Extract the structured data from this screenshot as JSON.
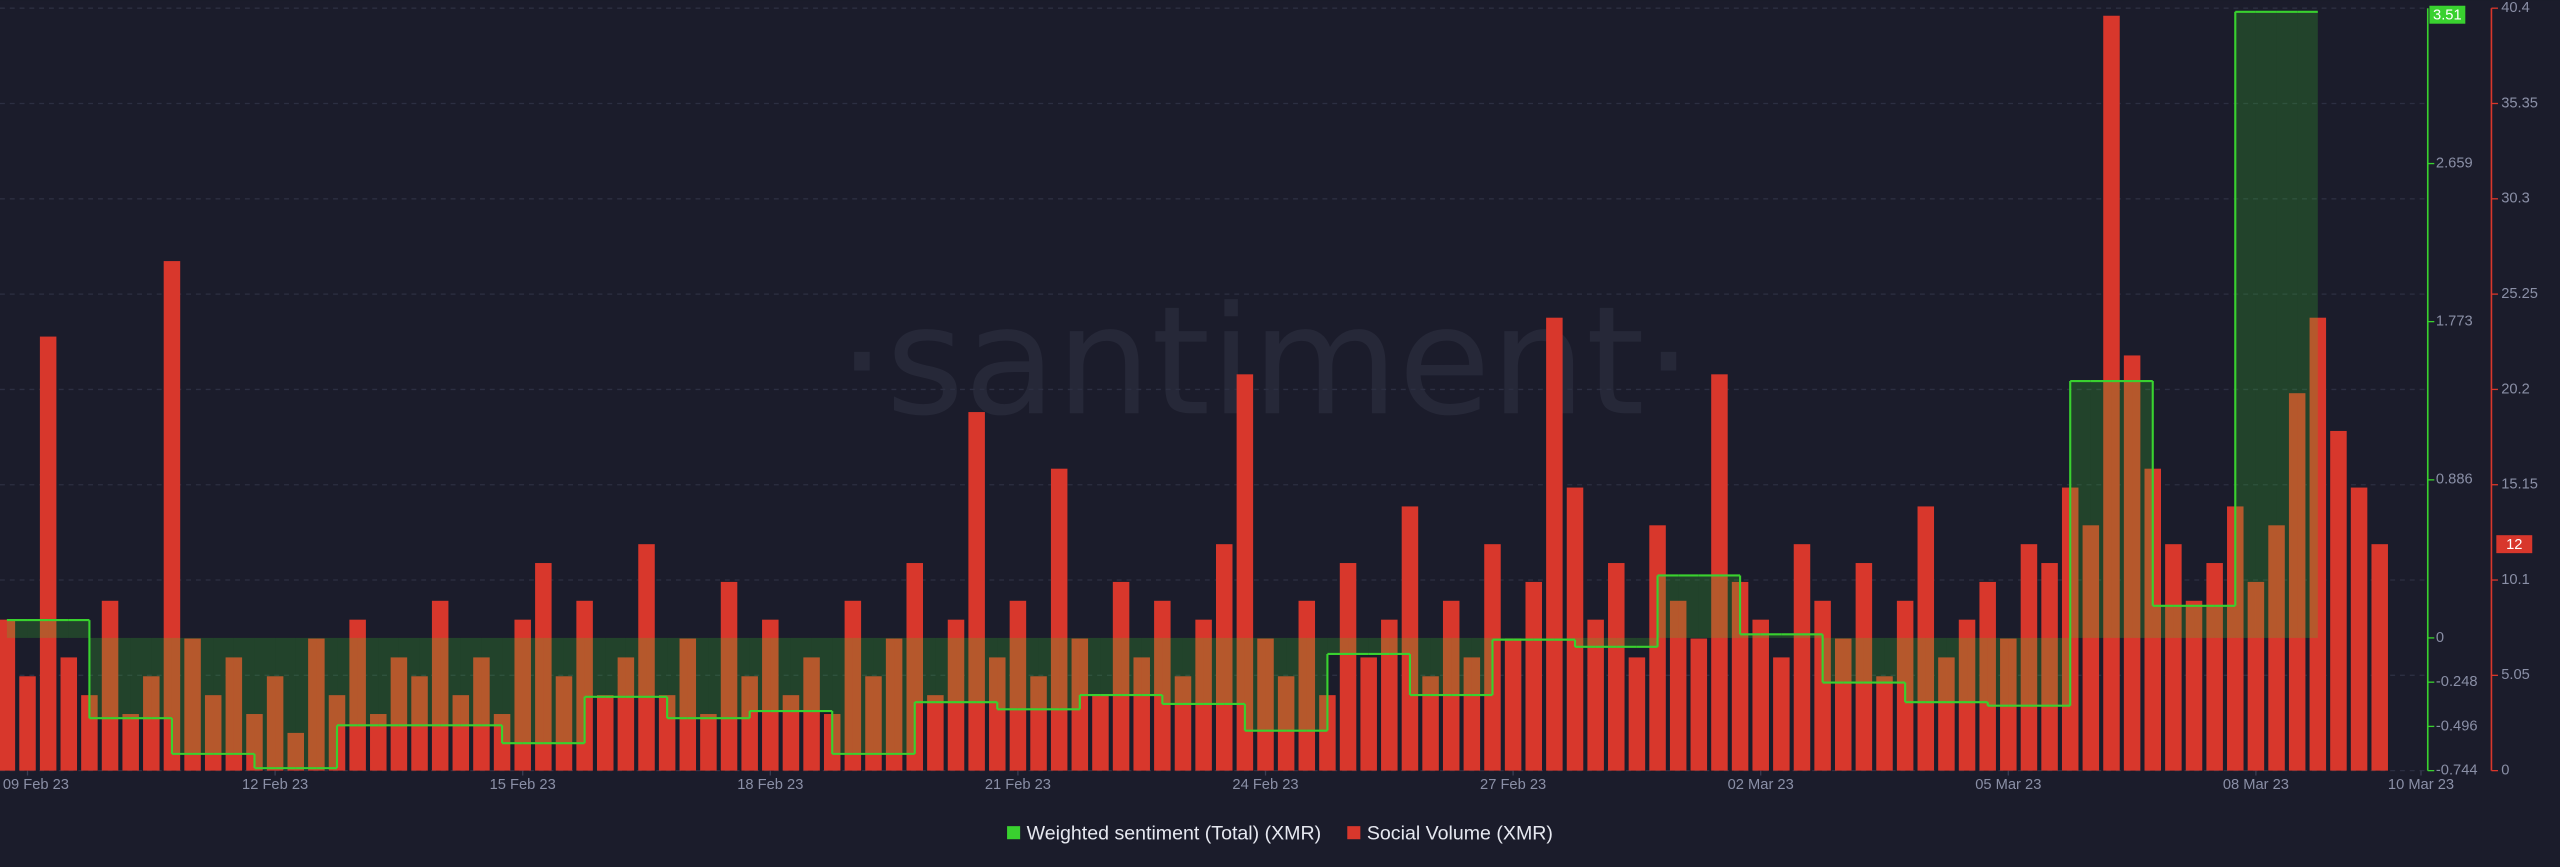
{
  "chart_data": {
    "type": "bar-step",
    "watermark": "·santiment·",
    "x": [
      "2023-02-08 18:00",
      "2023-02-09 00:00",
      "2023-02-09 06:00",
      "2023-02-09 12:00",
      "2023-02-09 18:00",
      "2023-02-10 00:00",
      "2023-02-10 06:00",
      "2023-02-10 12:00",
      "2023-02-10 18:00",
      "2023-02-11 00:00",
      "2023-02-11 06:00",
      "2023-02-11 12:00",
      "2023-02-11 18:00",
      "2023-02-12 00:00",
      "2023-02-12 06:00",
      "2023-02-12 12:00",
      "2023-02-12 18:00",
      "2023-02-13 00:00",
      "2023-02-13 06:00",
      "2023-02-13 12:00",
      "2023-02-13 18:00",
      "2023-02-14 00:00",
      "2023-02-14 06:00",
      "2023-02-14 12:00",
      "2023-02-14 18:00",
      "2023-02-15 00:00",
      "2023-02-15 06:00",
      "2023-02-15 12:00",
      "2023-02-15 18:00",
      "2023-02-16 00:00",
      "2023-02-16 06:00",
      "2023-02-16 12:00",
      "2023-02-16 18:00",
      "2023-02-17 00:00",
      "2023-02-17 06:00",
      "2023-02-17 12:00",
      "2023-02-17 18:00",
      "2023-02-18 00:00",
      "2023-02-18 06:00",
      "2023-02-18 12:00",
      "2023-02-18 18:00",
      "2023-02-19 00:00",
      "2023-02-19 06:00",
      "2023-02-19 12:00",
      "2023-02-19 18:00",
      "2023-02-20 00:00",
      "2023-02-20 06:00",
      "2023-02-20 12:00",
      "2023-02-20 18:00",
      "2023-02-21 00:00",
      "2023-02-21 06:00",
      "2023-02-21 12:00",
      "2023-02-21 18:00",
      "2023-02-22 00:00",
      "2023-02-22 06:00",
      "2023-02-22 12:00",
      "2023-02-22 18:00",
      "2023-02-23 00:00",
      "2023-02-23 06:00",
      "2023-02-23 12:00",
      "2023-02-23 18:00",
      "2023-02-24 00:00",
      "2023-02-24 06:00",
      "2023-02-24 12:00",
      "2023-02-24 18:00",
      "2023-02-25 00:00",
      "2023-02-25 06:00",
      "2023-02-25 12:00",
      "2023-02-25 18:00",
      "2023-02-26 00:00",
      "2023-02-26 06:00",
      "2023-02-26 12:00",
      "2023-02-26 18:00",
      "2023-02-27 00:00",
      "2023-02-27 06:00",
      "2023-02-27 12:00",
      "2023-02-27 18:00",
      "2023-02-28 00:00",
      "2023-02-28 06:00",
      "2023-02-28 12:00",
      "2023-02-28 18:00",
      "2023-03-01 00:00",
      "2023-03-01 06:00",
      "2023-03-01 12:00",
      "2023-03-01 18:00",
      "2023-03-02 00:00",
      "2023-03-02 06:00",
      "2023-03-02 12:00",
      "2023-03-02 18:00",
      "2023-03-03 00:00",
      "2023-03-03 06:00",
      "2023-03-03 12:00",
      "2023-03-03 18:00",
      "2023-03-04 00:00",
      "2023-03-04 06:00",
      "2023-03-04 12:00",
      "2023-03-04 18:00",
      "2023-03-05 00:00",
      "2023-03-05 06:00",
      "2023-03-05 12:00",
      "2023-03-05 18:00",
      "2023-03-06 00:00",
      "2023-03-06 06:00",
      "2023-03-06 12:00",
      "2023-03-06 18:00",
      "2023-03-07 00:00",
      "2023-03-07 06:00",
      "2023-03-07 12:00",
      "2023-03-07 18:00",
      "2023-03-08 00:00",
      "2023-03-08 06:00",
      "2023-03-08 12:00",
      "2023-03-08 18:00",
      "2023-03-09 00:00",
      "2023-03-09 06:00",
      "2023-03-09 12:00"
    ],
    "xlim": [
      "2023-02-08 16:00",
      "2023-03-09 16:00"
    ],
    "xticks": [
      {
        "value": "2023-02-09",
        "label": "09 Feb 23"
      },
      {
        "value": "2023-02-12",
        "label": "12 Feb 23"
      },
      {
        "value": "2023-02-15",
        "label": "15 Feb 23"
      },
      {
        "value": "2023-02-18",
        "label": "18 Feb 23"
      },
      {
        "value": "2023-02-21",
        "label": "21 Feb 23"
      },
      {
        "value": "2023-02-24",
        "label": "24 Feb 23"
      },
      {
        "value": "2023-02-27",
        "label": "27 Feb 23"
      },
      {
        "value": "2023-03-02",
        "label": "02 Mar 23"
      },
      {
        "value": "2023-03-05",
        "label": "05 Mar 23"
      },
      {
        "value": "2023-03-08",
        "label": "08 Mar 23"
      },
      {
        "value": "2023-03-10",
        "label": "10 Mar 23"
      }
    ],
    "ylim": [
      -0.744,
      3.53
    ],
    "yticks": [
      -0.744,
      -0.496,
      -0.248,
      0,
      0.886,
      1.773,
      2.659
    ],
    "y2lim": [
      0,
      40.4
    ],
    "y2ticks": [
      0,
      5.05,
      10.1,
      15.15,
      20.2,
      25.25,
      30.3,
      35.35,
      40.4
    ],
    "grid": true,
    "legend": "bottom",
    "series": [
      {
        "name": "Weighted sentiment (Total) (XMR)",
        "color": "#39d12f",
        "style": "step",
        "values": [
          0.1,
          0.1,
          0.1,
          0.1,
          -0.45,
          -0.45,
          -0.45,
          -0.45,
          -0.65,
          -0.65,
          -0.65,
          -0.65,
          -0.73,
          -0.73,
          -0.73,
          -0.73,
          -0.49,
          -0.49,
          -0.49,
          -0.49,
          -0.49,
          -0.49,
          -0.49,
          -0.49,
          -0.59,
          -0.59,
          -0.59,
          -0.59,
          -0.33,
          -0.33,
          -0.33,
          -0.33,
          -0.45,
          -0.45,
          -0.45,
          -0.45,
          -0.41,
          -0.41,
          -0.41,
          -0.41,
          -0.65,
          -0.65,
          -0.65,
          -0.65,
          -0.36,
          -0.36,
          -0.36,
          -0.36,
          -0.4,
          -0.4,
          -0.4,
          -0.4,
          -0.32,
          -0.32,
          -0.32,
          -0.32,
          -0.37,
          -0.37,
          -0.37,
          -0.37,
          -0.52,
          -0.52,
          -0.52,
          -0.52,
          -0.09,
          -0.09,
          -0.09,
          -0.09,
          -0.32,
          -0.32,
          -0.32,
          -0.32,
          -0.01,
          -0.01,
          -0.01,
          -0.01,
          -0.05,
          -0.05,
          -0.05,
          -0.05,
          0.35,
          0.35,
          0.35,
          0.35,
          0.02,
          0.02,
          0.02,
          0.02,
          -0.25,
          -0.25,
          -0.25,
          -0.25,
          -0.36,
          -0.36,
          -0.36,
          -0.36,
          -0.38,
          -0.38,
          -0.38,
          -0.38,
          1.44,
          1.44,
          1.44,
          1.44,
          0.18,
          0.18,
          0.18,
          0.18,
          3.51,
          3.51,
          3.51,
          3.51,
          null,
          null,
          null,
          null
        ]
      },
      {
        "name": "Social Volume (XMR)",
        "color": "#d8372c",
        "style": "bar",
        "axis": "y2",
        "values": [
          8,
          5,
          23,
          6,
          4,
          9,
          3,
          5,
          27,
          7,
          4,
          6,
          3,
          5,
          2,
          7,
          4,
          8,
          3,
          6,
          5,
          9,
          4,
          6,
          3,
          8,
          11,
          5,
          9,
          4,
          6,
          12,
          4,
          7,
          3,
          10,
          5,
          8,
          4,
          6,
          3,
          9,
          5,
          7,
          11,
          4,
          8,
          19,
          6,
          9,
          5,
          16,
          7,
          4,
          10,
          6,
          9,
          5,
          8,
          12,
          21,
          7,
          5,
          9,
          4,
          11,
          6,
          8,
          14,
          5,
          9,
          6,
          12,
          7,
          10,
          24,
          15,
          8,
          11,
          6,
          13,
          9,
          7,
          21,
          10,
          8,
          6,
          12,
          9,
          7,
          11,
          5,
          9,
          14,
          6,
          8,
          10,
          7,
          12,
          11,
          15,
          13,
          40,
          22,
          16,
          12,
          9,
          11,
          14,
          10,
          13,
          20,
          24,
          18,
          15,
          12
        ]
      }
    ]
  }
}
